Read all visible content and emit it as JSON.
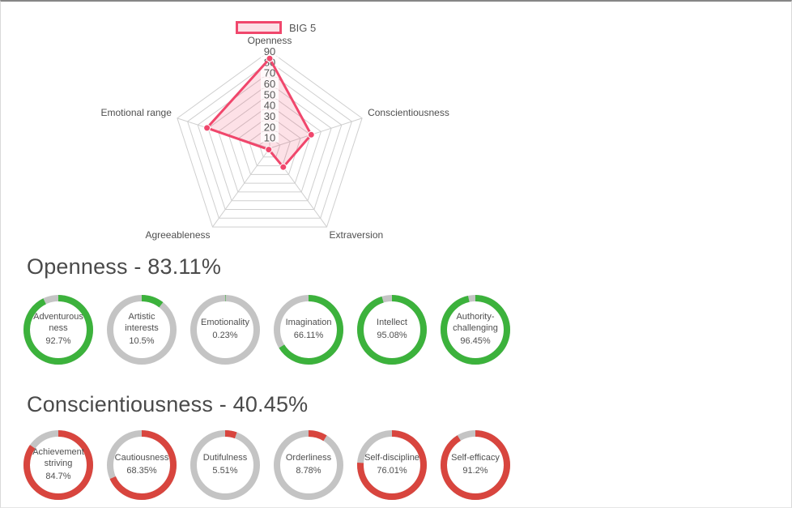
{
  "colors": {
    "radar_stroke": "#f0476c",
    "radar_fill": "rgba(240,71,108,0.16)",
    "positive_green": "#3cb23c",
    "negative_red": "#d8453e",
    "ring_track": "#c4c4c4",
    "grid_line": "#cfcfcf",
    "text_dark": "#4a4a4a"
  },
  "chart_data": [
    {
      "type": "radar",
      "series_name": "BIG 5",
      "axes": [
        "Openness",
        "Conscientiousness",
        "Extraversion",
        "Agreeableness",
        "Emotional range"
      ],
      "values": [
        83.11,
        40.45,
        21.5,
        1.5,
        61
      ],
      "scale": {
        "min": 0,
        "max": 90,
        "ticks": [
          10,
          20,
          30,
          40,
          50,
          60,
          70,
          80,
          90
        ]
      },
      "legend_position": "top",
      "grid": true,
      "color": "#f0476c"
    },
    {
      "type": "donut-set",
      "title": "Openness - 83.11%",
      "color": "#3cb23c",
      "items": [
        {
          "lines": [
            "Adventurous",
            "ness"
          ],
          "pct": "92.7%",
          "value": 92.7
        },
        {
          "lines": [
            "Artistic",
            "interests"
          ],
          "pct": "10.5%",
          "value": 10.5
        },
        {
          "lines": [
            "Emotionality"
          ],
          "pct": "0.23%",
          "value": 0.23
        },
        {
          "lines": [
            "Imagination"
          ],
          "pct": "66.11%",
          "value": 66.11
        },
        {
          "lines": [
            "Intellect"
          ],
          "pct": "95.08%",
          "value": 95.08
        },
        {
          "lines": [
            "Authority-",
            "challenging"
          ],
          "pct": "96.45%",
          "value": 96.45
        }
      ]
    },
    {
      "type": "donut-set",
      "title": "Conscientiousness - 40.45%",
      "color": "#d8453e",
      "items": [
        {
          "lines": [
            "Achievement",
            "striving"
          ],
          "pct": "84.7%",
          "value": 84.7
        },
        {
          "lines": [
            "Cautiousness"
          ],
          "pct": "68.35%",
          "value": 68.35
        },
        {
          "lines": [
            "Dutifulness"
          ],
          "pct": "5.51%",
          "value": 5.51
        },
        {
          "lines": [
            "Orderliness"
          ],
          "pct": "8.78%",
          "value": 8.78
        },
        {
          "lines": [
            "Self-discipline"
          ],
          "pct": "76.01%",
          "value": 76.01
        },
        {
          "lines": [
            "Self-efficacy"
          ],
          "pct": "91.2%",
          "value": 91.2
        }
      ]
    }
  ]
}
